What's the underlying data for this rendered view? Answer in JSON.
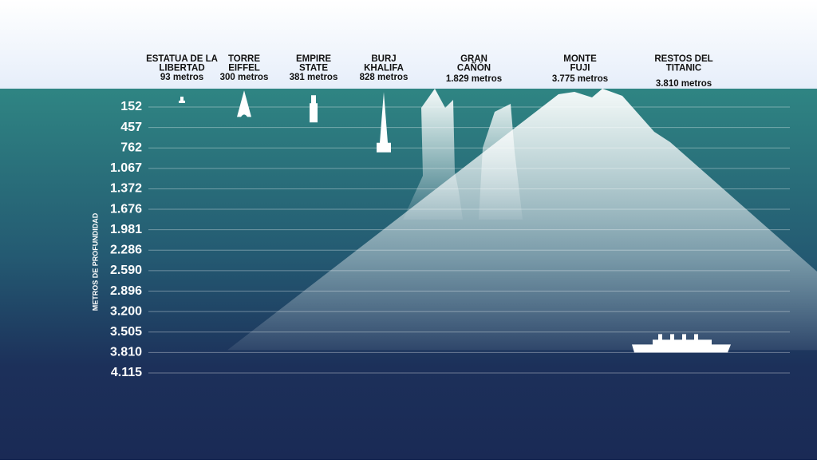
{
  "axis": {
    "label": "METROS DE PROFUNDIDAD",
    "ticks": [
      {
        "value": 152,
        "label": "152"
      },
      {
        "value": 457,
        "label": "457"
      },
      {
        "value": 762,
        "label": "762"
      },
      {
        "value": 1067,
        "label": "1.067"
      },
      {
        "value": 1372,
        "label": "1.372"
      },
      {
        "value": 1676,
        "label": "1.676"
      },
      {
        "value": 1981,
        "label": "1.981"
      },
      {
        "value": 2286,
        "label": "2.286"
      },
      {
        "value": 2590,
        "label": "2.590"
      },
      {
        "value": 2896,
        "label": "2.896"
      },
      {
        "value": 3200,
        "label": "3.200"
      },
      {
        "value": 3505,
        "label": "3.505"
      },
      {
        "value": 3810,
        "label": "3.810"
      },
      {
        "value": 4115,
        "label": "4.115"
      }
    ]
  },
  "landmarks": [
    {
      "name": [
        "ESTATUA DE LA",
        "LIBERTAD"
      ],
      "value": 93,
      "value_label": "93 metros"
    },
    {
      "name": [
        "TORRE",
        "EIFFEL"
      ],
      "value": 300,
      "value_label": "300 metros"
    },
    {
      "name": [
        "EMPIRE",
        "STATE"
      ],
      "value": 381,
      "value_label": "381 metros"
    },
    {
      "name": [
        "BURJ",
        "KHALIFA"
      ],
      "value": 828,
      "value_label": "828 metros"
    },
    {
      "name": [
        "GRAN",
        "CAÑÓN"
      ],
      "value": 1829,
      "value_label": "1.829 metros"
    },
    {
      "name": [
        "MONTE",
        "FUJI"
      ],
      "value": 3775,
      "value_label": "3.775 metros"
    },
    {
      "name": [
        "RESTOS DEL",
        "TITANIC"
      ],
      "value": 3810,
      "value_label": "3.810 metros"
    }
  ]
}
